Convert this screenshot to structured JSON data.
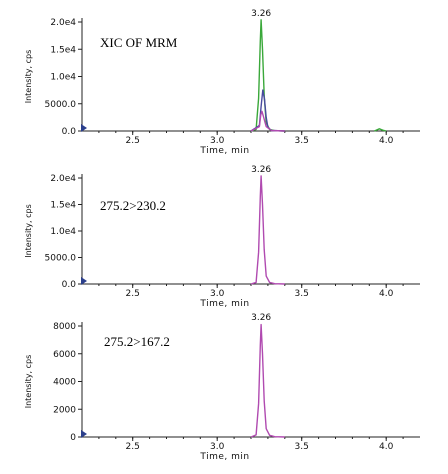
{
  "chart_data": [
    {
      "type": "line",
      "annotation": "XIC OF MRM",
      "ylabel": "Intensity, cps",
      "xlabel": "Time, min",
      "xlim": [
        2.2,
        4.2
      ],
      "ylim": [
        0,
        20000
      ],
      "x_ticks": [
        2.5,
        3.0,
        3.5,
        4.0
      ],
      "x_tick_labels": [
        "2.5",
        "3.0",
        "3.5",
        "4.0"
      ],
      "y_ticks": [
        0,
        5000,
        10000,
        15000,
        20000
      ],
      "y_tick_labels": [
        "0.0",
        "5000.0",
        "1.0e4",
        "1.5e4",
        "2.0e4"
      ],
      "peak_label": "3.26",
      "peak_time": 3.26,
      "series": [
        {
          "color": "#3aa83a",
          "x": [
            3.2,
            3.23,
            3.245,
            3.255,
            3.26,
            3.268,
            3.278,
            3.29,
            3.31,
            3.34,
            3.4
          ],
          "values": [
            0,
            300,
            6000,
            16500,
            20400,
            15000,
            6500,
            1500,
            300,
            50,
            0
          ]
        },
        {
          "color": "#4a4aa0",
          "x": [
            3.2,
            3.25,
            3.26,
            3.27,
            3.28,
            3.29,
            3.3,
            3.32,
            3.4
          ],
          "values": [
            0,
            1000,
            4500,
            7500,
            5800,
            2500,
            700,
            100,
            0
          ]
        },
        {
          "color": "#b04ab0",
          "x": [
            3.2,
            3.25,
            3.258,
            3.265,
            3.275,
            3.29,
            3.32,
            3.4
          ],
          "values": [
            0,
            800,
            3000,
            3600,
            2500,
            800,
            100,
            0
          ]
        },
        {
          "color": "#3aa83a",
          "x": [
            3.93,
            3.96,
            3.98,
            4.0
          ],
          "values": [
            0,
            400,
            150,
            0
          ]
        }
      ]
    },
    {
      "type": "line",
      "annotation": "275.2>230.2",
      "ylabel": "Intensity, cps",
      "xlabel": "Time, min",
      "xlim": [
        2.2,
        4.2
      ],
      "ylim": [
        0,
        20000
      ],
      "x_ticks": [
        2.5,
        3.0,
        3.5,
        4.0
      ],
      "x_tick_labels": [
        "2.5",
        "3.0",
        "3.5",
        "4.0"
      ],
      "y_ticks": [
        0,
        5000,
        10000,
        15000,
        20000
      ],
      "y_tick_labels": [
        "0.0",
        "5000.0",
        "1.0e4",
        "1.5e4",
        "2.0e4"
      ],
      "peak_label": "3.26",
      "peak_time": 3.26,
      "series": [
        {
          "color": "#b04ab0",
          "x": [
            3.2,
            3.23,
            3.245,
            3.255,
            3.26,
            3.268,
            3.278,
            3.29,
            3.31,
            3.34,
            3.4
          ],
          "values": [
            0,
            300,
            6000,
            16500,
            20400,
            15000,
            6500,
            1500,
            300,
            50,
            0
          ]
        }
      ]
    },
    {
      "type": "line",
      "annotation": "275.2>167.2",
      "ylabel": "Intensity, cps",
      "xlabel": "Time, min",
      "xlim": [
        2.2,
        4.2
      ],
      "ylim": [
        0,
        8000
      ],
      "x_ticks": [
        2.5,
        3.0,
        3.5,
        4.0
      ],
      "x_tick_labels": [
        "2.5",
        "3.0",
        "3.5",
        "4.0"
      ],
      "y_ticks": [
        0,
        2000,
        4000,
        6000,
        8000
      ],
      "y_tick_labels": [
        "0",
        "2000",
        "4000",
        "6000",
        "8000"
      ],
      "peak_label": "3.26",
      "peak_time": 3.26,
      "series": [
        {
          "color": "#b04ab0",
          "x": [
            3.2,
            3.23,
            3.245,
            3.255,
            3.26,
            3.268,
            3.278,
            3.29,
            3.31,
            3.34,
            3.4
          ],
          "values": [
            0,
            150,
            2400,
            6600,
            8100,
            6000,
            2600,
            600,
            120,
            20,
            0
          ]
        }
      ]
    }
  ]
}
